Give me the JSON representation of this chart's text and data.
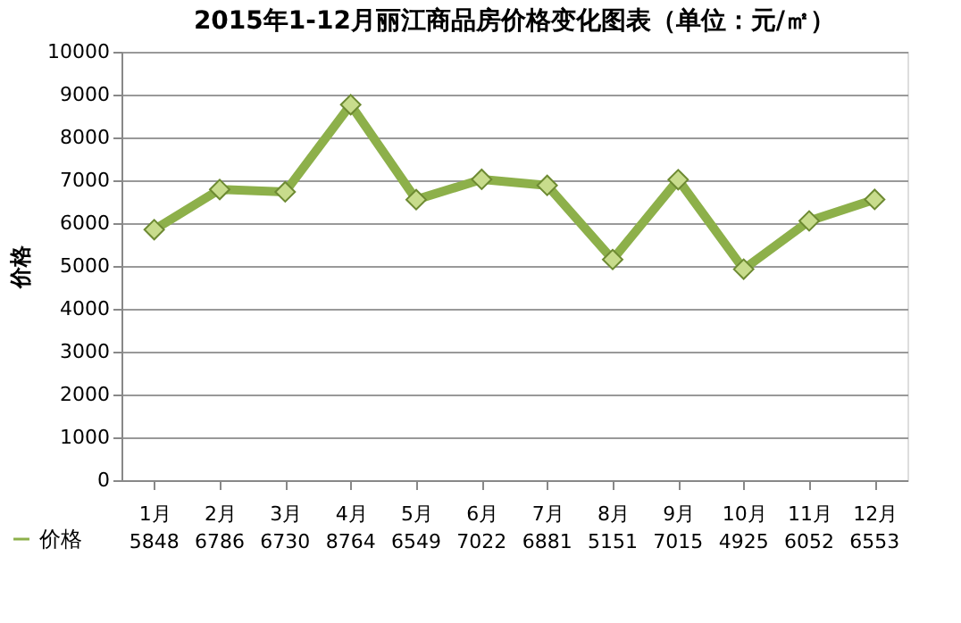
{
  "chart_data": {
    "type": "line",
    "title": "2015年1-12月丽江商品房价格变化图表（单位：元/㎡）",
    "ylabel": "价格",
    "categories": [
      "1月",
      "2月",
      "3月",
      "4月",
      "5月",
      "6月",
      "7月",
      "8月",
      "9月",
      "10月",
      "11月",
      "12月"
    ],
    "series": [
      {
        "name": "价格",
        "color": "#8db04a",
        "values": [
          5848,
          6786,
          6730,
          8764,
          6549,
          7022,
          6881,
          5151,
          7015,
          4925,
          6052,
          6553
        ]
      }
    ],
    "ylim": [
      0,
      10000
    ],
    "yticks": [
      0,
      1000,
      2000,
      3000,
      4000,
      5000,
      6000,
      7000,
      8000,
      9000,
      10000
    ],
    "grid": "y",
    "marker": "diamond",
    "line_style": "solid",
    "data_labels": true,
    "legend": "bottom"
  }
}
